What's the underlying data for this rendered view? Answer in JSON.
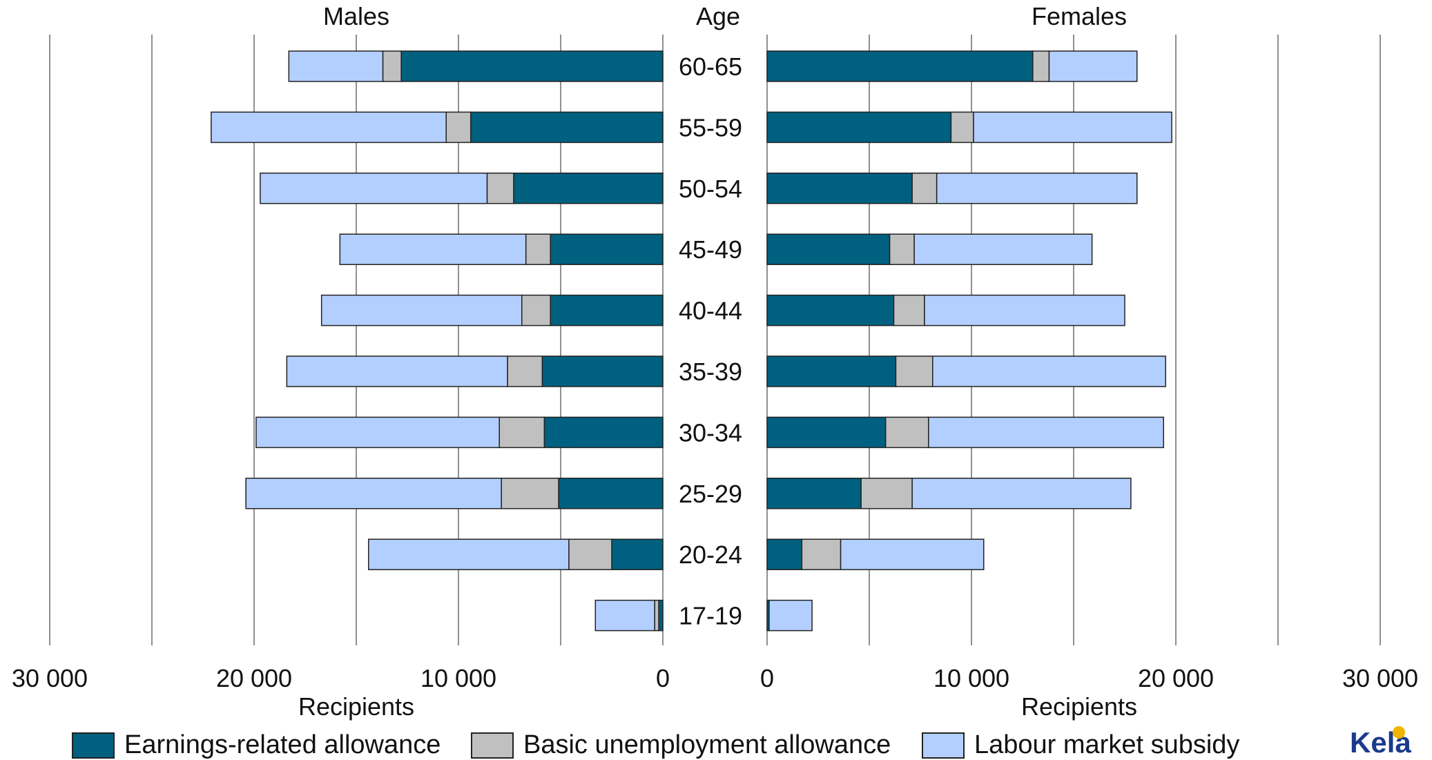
{
  "chart_data": {
    "type": "bar",
    "orientation": "horizontal",
    "layout": "population-pyramid",
    "panels": [
      "Males",
      "Females"
    ],
    "center_label": "Age",
    "categories": [
      "60-65",
      "55-59",
      "50-54",
      "45-49",
      "40-44",
      "35-39",
      "30-34",
      "25-29",
      "20-24",
      "17-19"
    ],
    "xlabel": "Recipients",
    "xlim": [
      0,
      30000
    ],
    "x_ticks": [
      "0",
      "10 000",
      "20 000",
      "30 000"
    ],
    "grid": true,
    "legend_position": "bottom",
    "series": [
      {
        "name": "Earnings-related allowance",
        "color": "#006080",
        "males": [
          12800,
          9400,
          7300,
          5500,
          5500,
          5900,
          5800,
          5100,
          2500,
          200
        ],
        "females": [
          13000,
          9000,
          7100,
          6000,
          6200,
          6300,
          5800,
          4600,
          1700,
          100
        ]
      },
      {
        "name": "Basic unemployment allowance",
        "color": "#c0c0c0",
        "males": [
          900,
          1200,
          1300,
          1200,
          1400,
          1700,
          2200,
          2800,
          2100,
          200
        ],
        "females": [
          800,
          1100,
          1200,
          1200,
          1500,
          1800,
          2100,
          2500,
          1900,
          0
        ]
      },
      {
        "name": "Labour market subsidy",
        "color": "#b3cfff",
        "males": [
          4600,
          11500,
          11100,
          9100,
          9800,
          10800,
          11900,
          12500,
          9800,
          2900
        ],
        "females": [
          4300,
          9700,
          9800,
          8700,
          9800,
          11400,
          11500,
          10700,
          7000,
          2100
        ]
      }
    ]
  },
  "brand": {
    "logo_text": "Kela"
  }
}
